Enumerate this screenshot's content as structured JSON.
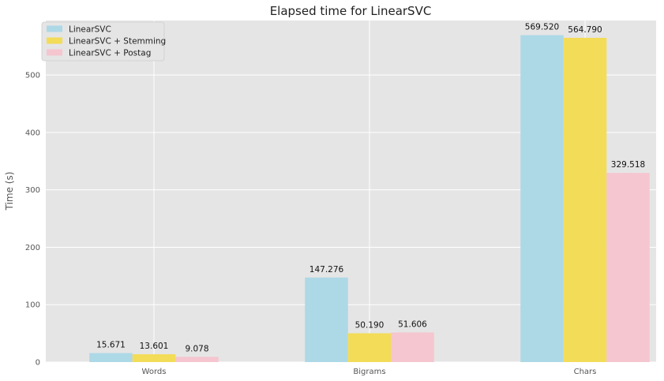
{
  "chart_data": {
    "type": "bar",
    "title": "Elapsed time for LinearSVC",
    "xlabel": "",
    "ylabel": "Time (s)",
    "categories": [
      "Words",
      "Bigrams",
      "Chars"
    ],
    "ylim": [
      0,
      595
    ],
    "yticks": [
      0,
      100,
      200,
      300,
      400,
      500
    ],
    "grid": true,
    "legend_position": "top-left",
    "series": [
      {
        "name": "LinearSVC",
        "color": "#add8e6",
        "values": [
          15.671,
          147.276,
          569.52
        ],
        "labels": [
          "15.671",
          "147.276",
          "569.520"
        ]
      },
      {
        "name": "LinearSVC + Stemming",
        "color": "#f3dc57",
        "values": [
          13.601,
          50.19,
          564.79
        ],
        "labels": [
          "13.601",
          "50.190",
          "564.790"
        ]
      },
      {
        "name": "LinearSVC + Postag",
        "color": "#f5c6cf",
        "values": [
          9.078,
          51.606,
          329.518
        ],
        "labels": [
          "9.078",
          "51.606",
          "329.518"
        ]
      }
    ]
  }
}
